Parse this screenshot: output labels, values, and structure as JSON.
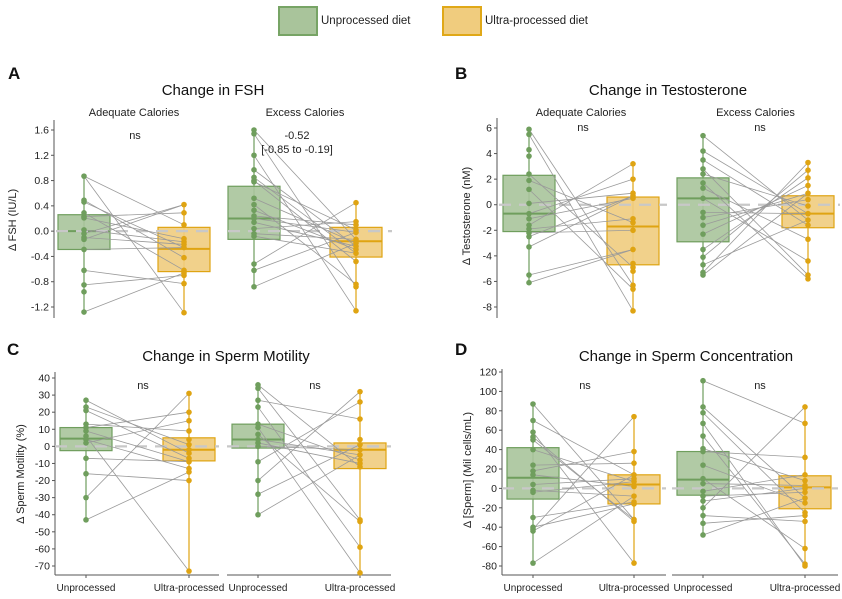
{
  "legend": {
    "items": [
      {
        "label": "Unprocessed diet",
        "fill": "#a9c49b",
        "stroke": "#77a465"
      },
      {
        "label": "Ultra-processed diet",
        "fill": "#f0cc7e",
        "stroke": "#e0a818"
      }
    ]
  },
  "colors": {
    "unprocessed_fill": "#a9c49b",
    "unprocessed_line": "#6f9e5d",
    "ultra_fill": "#f0cc7e",
    "ultra_line": "#dfa412",
    "pair_line": "#9a9a9a",
    "zero_line": "#c8c8c8"
  },
  "chart_data": [
    {
      "panel": "A",
      "type": "box",
      "title": "Change in FSH",
      "ylabel": "Δ FSH (IU/L)",
      "ylim": [
        -1.3,
        1.65
      ],
      "yticks": [
        1.6,
        1.2,
        0.8,
        0.4,
        0.0,
        -0.4,
        -0.8,
        -1.2
      ],
      "ytick_labels": [
        "1.6",
        "1.2",
        "0.8",
        "0.4",
        "0.0",
        "-0.4",
        "-0.8",
        "-1.2"
      ],
      "categories": [
        "Unprocessed",
        "Ultra-processed"
      ],
      "show_xticks": false,
      "facets": [
        {
          "label": "Adequate Calories",
          "annotation": [
            "ns"
          ],
          "unprocessed": {
            "q1": -0.29,
            "median": 0.0,
            "q3": 0.26,
            "points": [
              0.87,
              0.49,
              0.46,
              0.29,
              0.23,
              0.21,
              0.02,
              -0.04,
              -0.1,
              -0.13,
              -0.29,
              -0.62,
              -0.85,
              -0.96,
              -1.28
            ]
          },
          "ultra": {
            "q1": -0.64,
            "median": -0.28,
            "q3": 0.06,
            "points": [
              0.42,
              0.29,
              0.1,
              -0.12,
              -0.17,
              -0.21,
              -0.26,
              -0.42,
              -0.62,
              -0.66,
              -0.7,
              -0.83,
              -1.29
            ]
          },
          "pairs": [
            [
              0.87,
              0.1
            ],
            [
              0.87,
              -1.29
            ],
            [
              0.49,
              -0.42
            ],
            [
              0.46,
              -0.26
            ],
            [
              0.29,
              -0.62
            ],
            [
              0.23,
              0.29
            ],
            [
              0.21,
              -0.12
            ],
            [
              0.02,
              -0.17
            ],
            [
              -0.04,
              0.42
            ],
            [
              -0.1,
              -0.21
            ],
            [
              -0.13,
              0.42
            ],
            [
              -0.29,
              -0.26
            ],
            [
              -0.62,
              -0.83
            ],
            [
              -0.85,
              -0.7
            ],
            [
              -1.28,
              -0.66
            ]
          ]
        },
        {
          "label": "Excess Calories",
          "annotation": [
            "-0.52",
            "[-0.85 to -0.19]"
          ],
          "unprocessed": {
            "q1": -0.13,
            "median": 0.2,
            "q3": 0.71,
            "points": [
              1.6,
              1.54,
              1.2,
              0.97,
              0.85,
              0.8,
              0.78,
              0.52,
              0.42,
              0.33,
              0.24,
              0.2,
              0.14,
              0.04,
              -0.04,
              -0.08,
              -0.52,
              -0.62,
              -0.88
            ]
          },
          "ultra": {
            "q1": -0.41,
            "median": -0.16,
            "q3": 0.06,
            "points": [
              0.45,
              0.15,
              0.1,
              0.02,
              -0.02,
              -0.13,
              -0.19,
              -0.24,
              -0.29,
              -0.35,
              -0.48,
              -0.84,
              -0.88,
              -1.26
            ]
          },
          "pairs": [
            [
              1.6,
              -0.13
            ],
            [
              1.54,
              -0.88
            ],
            [
              1.2,
              -1.26
            ],
            [
              0.97,
              -0.24
            ],
            [
              0.85,
              -0.35
            ],
            [
              0.8,
              -0.48
            ],
            [
              0.78,
              0.02
            ],
            [
              0.52,
              -0.19
            ],
            [
              0.42,
              -0.84
            ],
            [
              0.33,
              -0.29
            ],
            [
              0.24,
              0.1
            ],
            [
              0.2,
              -0.02
            ],
            [
              0.14,
              -0.24
            ],
            [
              0.04,
              0.15
            ],
            [
              -0.04,
              -0.13
            ],
            [
              -0.08,
              -0.35
            ],
            [
              -0.52,
              0.45
            ],
            [
              -0.62,
              -0.02
            ],
            [
              -0.88,
              -0.19
            ]
          ]
        }
      ]
    },
    {
      "panel": "B",
      "type": "box",
      "title": "Change in Testosterone",
      "ylabel": "Δ Testosterone (nM)",
      "ylim": [
        -8.5,
        6.5
      ],
      "yticks": [
        6,
        4,
        2,
        0,
        -2,
        -4,
        -6,
        -8
      ],
      "ytick_labels": [
        "6",
        "4",
        "2",
        "0",
        "-2",
        "-4",
        "-6",
        "-8"
      ],
      "categories": [
        "Unprocessed",
        "Ultra-processed"
      ],
      "show_xticks": false,
      "facets": [
        {
          "label": "Adequate Calories",
          "annotation": [
            "ns"
          ],
          "unprocessed": {
            "q1": -2.1,
            "median": -0.7,
            "q3": 2.3,
            "points": [
              5.9,
              5.5,
              4.3,
              3.8,
              2.4,
              1.9,
              1.2,
              0.1,
              -0.7,
              -1.1,
              -1.6,
              -1.9,
              -2.2,
              -2.5,
              -3.3,
              -5.5,
              -6.1
            ]
          },
          "ultra": {
            "q1": -4.7,
            "median": -1.7,
            "q3": 0.6,
            "points": [
              3.2,
              2.0,
              0.9,
              0.7,
              0.5,
              -1.1,
              -1.4,
              -2.0,
              -3.5,
              -4.6,
              -4.9,
              -5.2,
              -6.3,
              -6.6,
              -8.3
            ]
          },
          "pairs": [
            [
              5.9,
              -6.3
            ],
            [
              5.5,
              -8.3
            ],
            [
              2.4,
              -4.9
            ],
            [
              1.9,
              -1.4
            ],
            [
              1.2,
              -6.6
            ],
            [
              0.1,
              0.9
            ],
            [
              -0.7,
              2.0
            ],
            [
              -1.1,
              0.5
            ],
            [
              -1.6,
              3.2
            ],
            [
              -1.9,
              -1.1
            ],
            [
              -2.2,
              -2.0
            ],
            [
              -2.5,
              0.7
            ],
            [
              -3.3,
              0.7
            ],
            [
              -5.5,
              -3.5
            ],
            [
              -6.1,
              -3.5
            ]
          ]
        },
        {
          "label": "Excess Calories",
          "annotation": [
            "ns"
          ],
          "unprocessed": {
            "q1": -2.9,
            "median": 0.5,
            "q3": 2.1,
            "points": [
              5.4,
              4.2,
              3.5,
              2.8,
              2.4,
              1.7,
              1.3,
              0.5,
              -0.6,
              -1.0,
              -1.6,
              -2.3,
              -3.5,
              -4.1,
              -4.7,
              -5.3,
              -5.5
            ]
          },
          "ultra": {
            "q1": -1.8,
            "median": -0.7,
            "q3": 0.7,
            "points": [
              3.3,
              2.7,
              2.1,
              1.5,
              0.9,
              0.4,
              -0.1,
              -0.7,
              -1.2,
              -1.6,
              -2.7,
              -4.4,
              -5.5,
              -5.8
            ]
          },
          "pairs": [
            [
              5.4,
              -1.2
            ],
            [
              4.2,
              -0.7
            ],
            [
              3.5,
              -1.6
            ],
            [
              2.8,
              -5.5
            ],
            [
              2.4,
              -0.1
            ],
            [
              1.7,
              -5.8
            ],
            [
              1.3,
              -2.7
            ],
            [
              0.5,
              -4.4
            ],
            [
              -0.6,
              -0.7
            ],
            [
              -1.0,
              0.4
            ],
            [
              -1.6,
              0.9
            ],
            [
              -2.3,
              1.5
            ],
            [
              -3.5,
              2.1
            ],
            [
              -4.1,
              2.7
            ],
            [
              -4.7,
              -1.2
            ],
            [
              -5.3,
              3.3
            ],
            [
              -5.5,
              0.9
            ]
          ]
        }
      ]
    },
    {
      "panel": "C",
      "type": "box",
      "title": "Change in Sperm Motility",
      "ylabel": "Δ  Sperm Motility (%)",
      "ylim": [
        -77,
        42
      ],
      "yticks": [
        40,
        30,
        20,
        10,
        0,
        -10,
        -20,
        -30,
        -40,
        -50,
        -60,
        -70
      ],
      "ytick_labels": [
        "40",
        "30",
        "20",
        "10",
        "0",
        "-10",
        "-20",
        "-30",
        "-40",
        "-50",
        "-60",
        "-70"
      ],
      "categories": [
        "Unprocessed",
        "Ultra-processed"
      ],
      "show_xticks": true,
      "facets": [
        {
          "label": "",
          "annotation": [
            "ns"
          ],
          "unprocessed": {
            "q1": -2.5,
            "median": 4.5,
            "q3": 11.0,
            "points": [
              27,
              23,
              21,
              13,
              11,
              9,
              6,
              4,
              2,
              -7,
              -16,
              -30,
              -43
            ]
          },
          "ultra": {
            "q1": -8.5,
            "median": -2,
            "q3": 5,
            "points": [
              31,
              20,
              15,
              9,
              4,
              1,
              -2,
              -4,
              -7,
              -9,
              -13,
              -15,
              -20,
              -73
            ]
          },
          "pairs": [
            [
              27,
              -4
            ],
            [
              23,
              1
            ],
            [
              21,
              -7
            ],
            [
              13,
              9
            ],
            [
              11,
              20
            ],
            [
              9,
              -9
            ],
            [
              6,
              -73
            ],
            [
              4,
              -13
            ],
            [
              2,
              15
            ],
            [
              -7,
              -9
            ],
            [
              -16,
              -20
            ],
            [
              -30,
              31
            ],
            [
              -43,
              -15
            ]
          ]
        },
        {
          "label": "",
          "annotation": [
            "ns"
          ],
          "unprocessed": {
            "q1": -1,
            "median": 4,
            "q3": 13,
            "points": [
              36,
              34,
              27,
              23,
              13,
              11,
              7,
              4,
              2,
              0,
              -9,
              -20,
              -28,
              -40
            ]
          },
          "ultra": {
            "q1": -13,
            "median": -2,
            "q3": 2,
            "points": [
              32,
              26,
              16,
              4,
              1,
              -2,
              -5,
              -8,
              -10,
              -12,
              -43,
              -44,
              -59,
              -74
            ]
          },
          "pairs": [
            [
              36,
              -12
            ],
            [
              34,
              -43
            ],
            [
              27,
              16
            ],
            [
              23,
              -59
            ],
            [
              13,
              -8
            ],
            [
              11,
              -74
            ],
            [
              7,
              -44
            ],
            [
              4,
              -5
            ],
            [
              2,
              -10
            ],
            [
              0,
              -2
            ],
            [
              -9,
              26
            ],
            [
              -20,
              32
            ],
            [
              -28,
              1
            ],
            [
              -40,
              -5
            ]
          ]
        }
      ]
    },
    {
      "panel": "D",
      "type": "box",
      "title": "Change in Sperm Concentration",
      "ylabel": "Δ  [Sperm] (Mil cells/mL)",
      "ylim": [
        -84,
        122
      ],
      "yticks": [
        120,
        100,
        80,
        60,
        40,
        20,
        0,
        -20,
        -40,
        -60,
        -80
      ],
      "ytick_labels": [
        "120",
        "100",
        "80",
        "60",
        "40",
        "20",
        "0",
        "-20",
        "-40",
        "-60",
        "-80"
      ],
      "categories": [
        "Unprocessed",
        "Ultra-processed"
      ],
      "show_xticks": true,
      "facets": [
        {
          "label": "",
          "annotation": [
            "ns"
          ],
          "unprocessed": {
            "q1": -11,
            "median": 11,
            "q3": 42,
            "points": [
              87,
              70,
              58,
              53,
              50,
              40,
              24,
              18,
              14,
              4,
              -2,
              -4,
              -30,
              -40,
              -42,
              -44,
              -77
            ]
          },
          "ultra": {
            "q1": -16,
            "median": 4,
            "q3": 14,
            "points": [
              74,
              38,
              26,
              14,
              10,
              7,
              2,
              -8,
              -14,
              -16,
              -32,
              -34,
              -77
            ]
          },
          "pairs": [
            [
              87,
              -32
            ],
            [
              70,
              14
            ],
            [
              58,
              -77
            ],
            [
              53,
              -34
            ],
            [
              50,
              -32
            ],
            [
              40,
              7
            ],
            [
              24,
              26
            ],
            [
              18,
              38
            ],
            [
              14,
              2
            ],
            [
              4,
              10
            ],
            [
              -2,
              -8
            ],
            [
              -4,
              7
            ],
            [
              -30,
              -14
            ],
            [
              -40,
              -16
            ],
            [
              -42,
              74
            ],
            [
              -44,
              14
            ],
            [
              -77,
              -8
            ]
          ]
        },
        {
          "label": "",
          "annotation": [
            "ns"
          ],
          "unprocessed": {
            "q1": -7,
            "median": 9,
            "q3": 38,
            "points": [
              111,
              84,
              78,
              67,
              54,
              41,
              38,
              24,
              10,
              5,
              -3,
              -8,
              -13,
              -20,
              -28,
              -36,
              -48
            ]
          },
          "ultra": {
            "q1": -21,
            "median": 1,
            "q3": 13,
            "points": [
              84,
              67,
              32,
              14,
              8,
              3,
              0,
              -4,
              -10,
              -15,
              -25,
              -28,
              -34,
              -62,
              -78,
              -80
            ]
          },
          "pairs": [
            [
              111,
              67
            ],
            [
              84,
              -10
            ],
            [
              78,
              -25
            ],
            [
              67,
              -80
            ],
            [
              54,
              -78
            ],
            [
              41,
              8
            ],
            [
              38,
              32
            ],
            [
              24,
              -15
            ],
            [
              10,
              -62
            ],
            [
              5,
              3
            ],
            [
              -3,
              14
            ],
            [
              -8,
              -4
            ],
            [
              -13,
              0
            ],
            [
              -20,
              84
            ],
            [
              -28,
              -34
            ],
            [
              -36,
              -28
            ],
            [
              -48,
              -10
            ]
          ]
        }
      ]
    }
  ]
}
